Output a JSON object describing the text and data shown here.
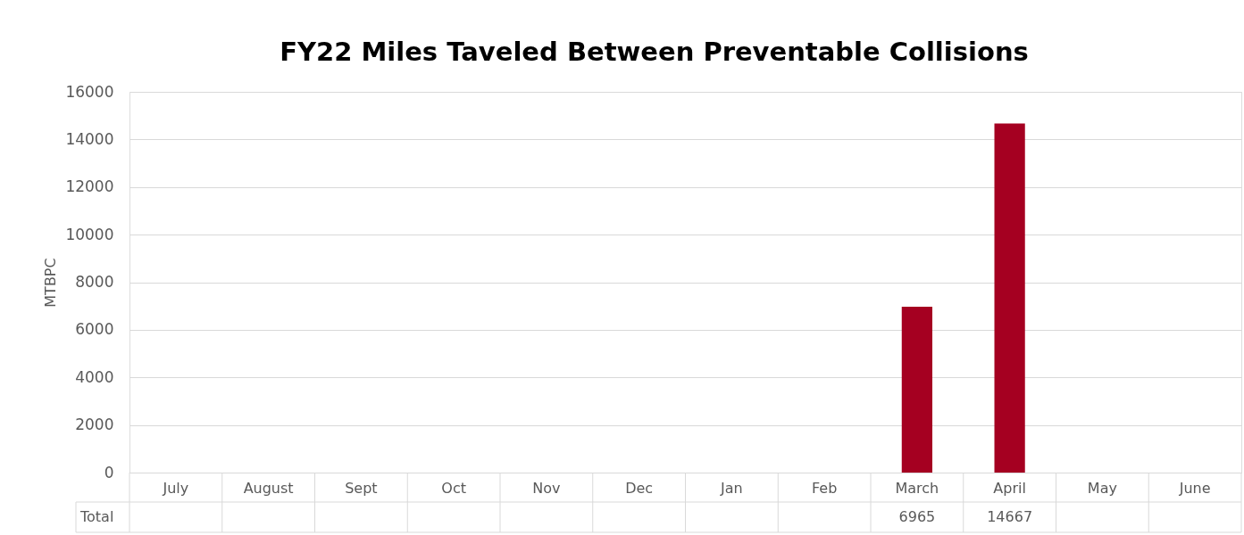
{
  "chart_data": {
    "type": "bar",
    "title": "FY22 Miles Taveled Between Preventable Collisions",
    "ylabel": "MTBPC",
    "categories": [
      "July",
      "August",
      "Sept",
      "Oct",
      "Nov",
      "Dec",
      "Jan",
      "Feb",
      "March",
      "April",
      "May",
      "June"
    ],
    "series": [
      {
        "name": "Total",
        "color": "#a50021",
        "values": [
          null,
          null,
          null,
          null,
          null,
          null,
          null,
          null,
          6965,
          14667,
          null,
          null
        ]
      }
    ],
    "ylim": [
      0,
      16000
    ],
    "yticks": [
      0,
      2000,
      4000,
      6000,
      8000,
      10000,
      12000,
      14000,
      16000
    ],
    "grid": "y",
    "data_labels": true
  }
}
